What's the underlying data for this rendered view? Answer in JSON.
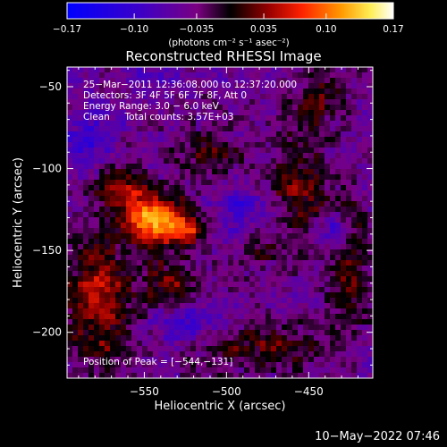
{
  "chart_data": {
    "type": "heatmap",
    "title": "Reconstructed RHESSI Image",
    "xlabel": "Heliocentric X (arcsec)",
    "ylabel": "Heliocentric Y (arcsec)",
    "xlim": [
      -597,
      -411
    ],
    "ylim": [
      -228,
      -38
    ],
    "xticks": [
      -550,
      -500,
      -450
    ],
    "xtick_labels": [
      "−550",
      "−500",
      "−450"
    ],
    "yticks": [
      -50,
      -100,
      -150,
      -200
    ],
    "ytick_labels": [
      "−50",
      "−100",
      "−150",
      "−200"
    ],
    "colorbar": {
      "min": -0.17,
      "max": 0.17,
      "ticks": [
        -0.17,
        -0.1,
        -0.035,
        0.035,
        0.1,
        0.17
      ],
      "tick_labels": [
        "−0.17",
        "−0.10",
        "−0.035",
        "0.035",
        "0.10",
        "0.17"
      ],
      "unit_label": "(photons cm⁻² s⁻¹ asec⁻²)"
    },
    "peak": [
      -544,
      -131
    ],
    "peak_value": 0.17,
    "sources": [
      {
        "x": -544,
        "y": -131,
        "sx": 13,
        "sy": 11,
        "amp": 0.17
      },
      {
        "x": -523,
        "y": -136,
        "sx": 9,
        "sy": 7,
        "amp": 0.08
      },
      {
        "x": -565,
        "y": -112,
        "sx": 10,
        "sy": 11,
        "amp": 0.07
      },
      {
        "x": -577,
        "y": -182,
        "sx": 15,
        "sy": 28,
        "amp": 0.09
      },
      {
        "x": -533,
        "y": -172,
        "sx": 12,
        "sy": 12,
        "amp": 0.06
      },
      {
        "x": -512,
        "y": -90,
        "sx": 14,
        "sy": 10,
        "amp": 0.05
      },
      {
        "x": -456,
        "y": -112,
        "sx": 13,
        "sy": 19,
        "amp": 0.07
      },
      {
        "x": -446,
        "y": -58,
        "sx": 11,
        "sy": 12,
        "amp": 0.05
      },
      {
        "x": -425,
        "y": -157,
        "sx": 8,
        "sy": 25,
        "amp": 0.06
      },
      {
        "x": -468,
        "y": -207,
        "sx": 24,
        "sy": 11,
        "amp": 0.05
      },
      {
        "x": -503,
        "y": -207,
        "sx": 18,
        "sy": 10,
        "amp": 0.04
      },
      {
        "x": -478,
        "y": -152,
        "sx": 10,
        "sy": 10,
        "amp": 0.03
      },
      {
        "x": -520,
        "y": -195,
        "sx": 20,
        "sy": 9,
        "amp": -0.06
      },
      {
        "x": -490,
        "y": -123,
        "sx": 12,
        "sy": 10,
        "amp": -0.05
      },
      {
        "x": -583,
        "y": -82,
        "sx": 12,
        "sy": 12,
        "amp": -0.05
      },
      {
        "x": -433,
        "y": -140,
        "sx": 6,
        "sy": 8,
        "amp": -0.07
      },
      {
        "x": -540,
        "y": -47,
        "sx": 14,
        "sy": 8,
        "amp": -0.03
      }
    ]
  },
  "annotation": {
    "line1": "25−Mar−2011 12:36:08.000 to 12:37:20.000",
    "line2": "Detectors: 3F 4F 5F 6F 7F 8F, Att 0",
    "line3": "Energy Range: 3.0 − 6.0 keV",
    "line4": "Clean     Total counts: 3.57E+03",
    "peak_label": "Position of Peak = [−544,−131]"
  },
  "timestamp": "10−May−2022 07:46"
}
